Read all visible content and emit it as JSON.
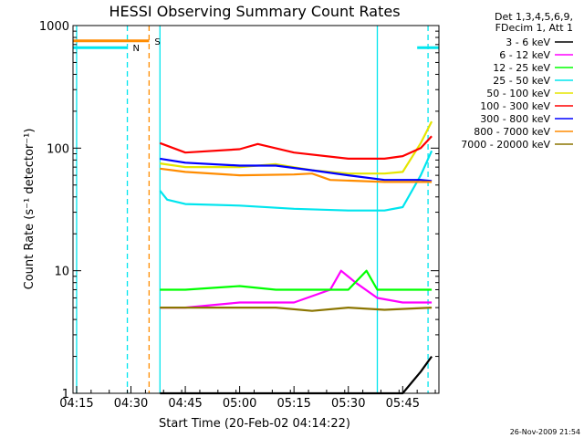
{
  "chart_data": {
    "type": "line",
    "title": "HESSI Observing Summary Count Rates",
    "xlabel": "Start Time (20-Feb-02 04:14:22)",
    "ylabel": "Count Rate (s⁻¹ detector⁻¹)",
    "y_scale": "log",
    "ylim": [
      1,
      1000
    ],
    "xlim": [
      "04:14",
      "05:55"
    ],
    "x_ticks": [
      "04:15",
      "04:30",
      "04:45",
      "05:00",
      "05:15",
      "05:30",
      "05:45"
    ],
    "y_ticks": [
      "1",
      "10",
      "100",
      "1000"
    ],
    "legend_header": [
      "Det 1,3,4,5,6,9,",
      "FDecim 1, Att 1"
    ],
    "legend_position": "right",
    "grid": false,
    "flags": [
      {
        "label": "S",
        "color": "#ff8c00",
        "start": "04:14",
        "end": "04:35",
        "level": 750
      },
      {
        "label": "N",
        "color": "#00e5ee",
        "start": "04:14",
        "end": "04:29",
        "level": 660
      },
      {
        "label": "",
        "color": "#00e5ee",
        "start": "05:49",
        "end": "05:55",
        "level": 660
      }
    ],
    "vertical_lines": [
      {
        "time": "04:15",
        "color": "#00e5ee",
        "style": "solid"
      },
      {
        "time": "04:29",
        "color": "#00e5ee",
        "style": "dashed"
      },
      {
        "time": "04:35",
        "color": "#ff8c00",
        "style": "dashed"
      },
      {
        "time": "04:38",
        "color": "#00e5ee",
        "style": "solid"
      },
      {
        "time": "05:38",
        "color": "#00e5ee",
        "style": "solid"
      },
      {
        "time": "05:52",
        "color": "#00e5ee",
        "style": "dashed"
      }
    ],
    "series": [
      {
        "name": "3 - 6 keV",
        "color": "#000000",
        "x": [
          "04:38",
          "04:45",
          "05:00",
          "05:15",
          "05:30",
          "05:38",
          "05:45",
          "05:50",
          "05:53"
        ],
        "values": [
          1,
          1,
          1,
          1,
          1,
          1,
          1,
          1.5,
          2
        ]
      },
      {
        "name": "6 - 12 keV",
        "color": "#ff00ff",
        "x": [
          "04:38",
          "04:45",
          "05:00",
          "05:15",
          "05:25",
          "05:28",
          "05:32",
          "05:38",
          "05:45",
          "05:53"
        ],
        "values": [
          5,
          5,
          5.5,
          5.5,
          7,
          10,
          8,
          6,
          5.5,
          5.5
        ]
      },
      {
        "name": "12 - 25 keV",
        "color": "#00ff00",
        "x": [
          "04:38",
          "04:45",
          "05:00",
          "05:10",
          "05:20",
          "05:30",
          "05:35",
          "05:38",
          "05:45",
          "05:53"
        ],
        "values": [
          7,
          7,
          7.5,
          7,
          7,
          7,
          10,
          7,
          7,
          7
        ]
      },
      {
        "name": "25 - 50 keV",
        "color": "#00e5ee",
        "x": [
          "04:38",
          "04:40",
          "04:45",
          "05:00",
          "05:15",
          "05:30",
          "05:40",
          "05:45",
          "05:50",
          "05:53"
        ],
        "values": [
          45,
          38,
          35,
          34,
          32,
          31,
          31,
          33,
          60,
          95
        ]
      },
      {
        "name": "50 - 100 keV",
        "color": "#e5e500",
        "x": [
          "04:38",
          "04:45",
          "05:00",
          "05:10",
          "05:20",
          "05:30",
          "05:40",
          "05:45",
          "05:50",
          "05:53"
        ],
        "values": [
          75,
          70,
          70,
          74,
          66,
          62,
          62,
          64,
          110,
          165
        ]
      },
      {
        "name": "100 - 300 keV",
        "color": "#ff0000",
        "x": [
          "04:38",
          "04:45",
          "05:00",
          "05:05",
          "05:15",
          "05:30",
          "05:40",
          "05:45",
          "05:50",
          "05:53"
        ],
        "values": [
          110,
          92,
          98,
          108,
          92,
          82,
          82,
          86,
          100,
          125
        ]
      },
      {
        "name": "300 - 800 keV",
        "color": "#0000ff",
        "x": [
          "04:38",
          "04:45",
          "05:00",
          "05:10",
          "05:20",
          "05:30",
          "05:40",
          "05:45",
          "05:50",
          "05:53"
        ],
        "values": [
          82,
          76,
          72,
          72,
          66,
          60,
          55,
          55,
          55,
          54
        ]
      },
      {
        "name": "800 - 7000 keV",
        "color": "#ff8c00",
        "x": [
          "04:38",
          "04:45",
          "05:00",
          "05:15",
          "05:20",
          "05:25",
          "05:40",
          "05:53"
        ],
        "values": [
          68,
          64,
          60,
          61,
          62,
          55,
          53,
          53
        ]
      },
      {
        "name": "7000 - 20000 keV",
        "color": "#8b7500",
        "x": [
          "04:38",
          "04:45",
          "05:00",
          "05:10",
          "05:20",
          "05:30",
          "05:40",
          "05:53"
        ],
        "values": [
          5,
          5,
          5,
          5,
          4.7,
          5,
          4.8,
          5
        ]
      }
    ],
    "footer_date": "26-Nov-2009 21:54"
  }
}
